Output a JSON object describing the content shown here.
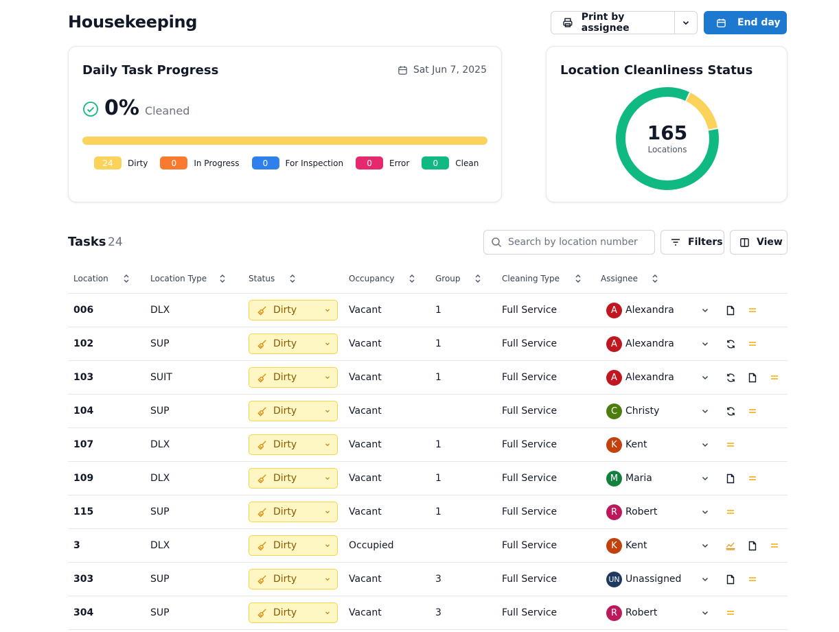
{
  "header": {
    "title": "Housekeeping",
    "print_label": "Print by assignee",
    "end_day_label": "End day"
  },
  "progress_card": {
    "title": "Daily Task Progress",
    "date": "Sat Jun 7, 2025",
    "percent": "0%",
    "percent_label": "Cleaned",
    "bar_fraction": 1.0,
    "bar_color": "#fcd35a",
    "legend": [
      {
        "count": "24",
        "label": "Dirty",
        "color": "#fcd35a"
      },
      {
        "count": "0",
        "label": "In Progress",
        "color": "#f97a2e"
      },
      {
        "count": "0",
        "label": "For Inspection",
        "color": "#2f80ed"
      },
      {
        "count": "0",
        "label": "Error",
        "color": "#e6286e"
      },
      {
        "count": "0",
        "label": "Clean",
        "color": "#10b981"
      }
    ]
  },
  "status_card": {
    "title": "Location Cleanliness Status",
    "total": "165",
    "total_label": "Locations",
    "segments": [
      {
        "label": "Dirty",
        "value": 24,
        "color": "#fcd35a"
      },
      {
        "label": "Clean",
        "value": 141,
        "color": "#10b981"
      }
    ]
  },
  "tasks": {
    "title": "Tasks",
    "count": "24",
    "search_placeholder": "Search by location number",
    "filters_label": "Filters",
    "view_label": "View",
    "columns": [
      "Location",
      "Location Type",
      "Status",
      "Occupancy",
      "Group",
      "Cleaning Type",
      "Assignee"
    ],
    "rows": [
      {
        "location": "006",
        "type": "DLX",
        "status": "Dirty",
        "occupancy": "Vacant",
        "group": "1",
        "cleaning": "Full Service",
        "initial": "A",
        "assignee": "Alexandra",
        "avatar_color": "#c0161f",
        "icons": [
          "note-icon",
          "priority-icon"
        ]
      },
      {
        "location": "102",
        "type": "SUP",
        "status": "Dirty",
        "occupancy": "Vacant",
        "group": "1",
        "cleaning": "Full Service",
        "initial": "A",
        "assignee": "Alexandra",
        "avatar_color": "#c0161f",
        "icons": [
          "refresh-icon",
          "priority-icon"
        ]
      },
      {
        "location": "103",
        "type": "SUIT",
        "status": "Dirty",
        "occupancy": "Vacant",
        "group": "1",
        "cleaning": "Full Service",
        "initial": "A",
        "assignee": "Alexandra",
        "avatar_color": "#c0161f",
        "icons": [
          "refresh-icon",
          "note-icon",
          "priority-icon"
        ]
      },
      {
        "location": "104",
        "type": "SUP",
        "status": "Dirty",
        "occupancy": "Vacant",
        "group": "",
        "cleaning": "Full Service",
        "initial": "C",
        "assignee": "Christy",
        "avatar_color": "#4d7c0f",
        "icons": [
          "refresh-icon",
          "priority-icon"
        ]
      },
      {
        "location": "107",
        "type": "DLX",
        "status": "Dirty",
        "occupancy": "Vacant",
        "group": "1",
        "cleaning": "Full Service",
        "initial": "K",
        "assignee": "Kent",
        "avatar_color": "#c2410c",
        "icons": [
          "priority-icon"
        ]
      },
      {
        "location": "109",
        "type": "DLX",
        "status": "Dirty",
        "occupancy": "Vacant",
        "group": "1",
        "cleaning": "Full Service",
        "initial": "M",
        "assignee": "Maria",
        "avatar_color": "#15803d",
        "icons": [
          "note-icon",
          "priority-icon"
        ]
      },
      {
        "location": "115",
        "type": "SUP",
        "status": "Dirty",
        "occupancy": "Vacant",
        "group": "1",
        "cleaning": "Full Service",
        "initial": "R",
        "assignee": "Robert",
        "avatar_color": "#be185d",
        "icons": [
          "priority-icon"
        ]
      },
      {
        "location": "3",
        "type": "DLX",
        "status": "Dirty",
        "occupancy": "Occupied",
        "group": "",
        "cleaning": "Full Service",
        "initial": "K",
        "assignee": "Kent",
        "avatar_color": "#c2410c",
        "icons": [
          "bed-icon",
          "note-icon",
          "priority-icon"
        ]
      },
      {
        "location": "303",
        "type": "SUP",
        "status": "Dirty",
        "occupancy": "Vacant",
        "group": "3",
        "cleaning": "Full Service",
        "initial": "UN",
        "assignee": "Unassigned",
        "avatar_color": "#1e3a5f",
        "icons": [
          "note-icon",
          "priority-icon"
        ]
      },
      {
        "location": "304",
        "type": "SUP",
        "status": "Dirty",
        "occupancy": "Vacant",
        "group": "3",
        "cleaning": "Full Service",
        "initial": "R",
        "assignee": "Robert",
        "avatar_color": "#be185d",
        "icons": [
          "priority-icon"
        ]
      }
    ]
  }
}
